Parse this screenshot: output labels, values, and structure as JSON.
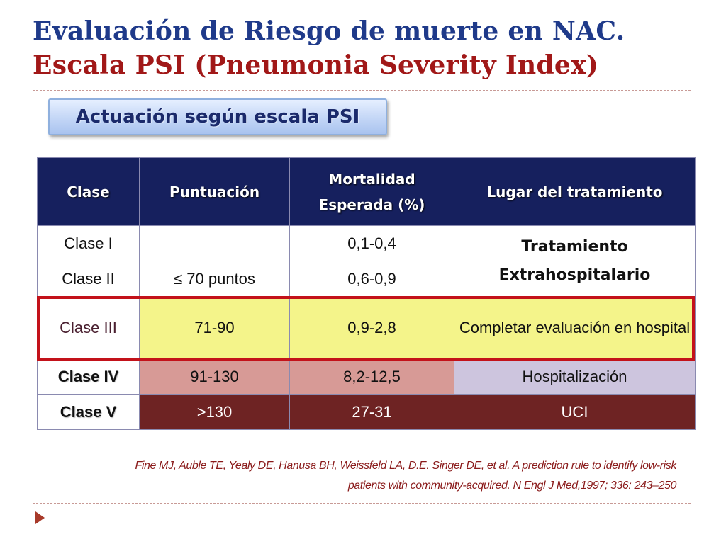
{
  "title": {
    "line1": "Evaluación de Riesgo de muerte en NAC.",
    "line2": "Escala PSI (Pneumonia Severity Index)"
  },
  "subtitle": "Actuación según escala PSI",
  "table": {
    "headers": {
      "clase": "Clase",
      "puntuacion": "Puntuación",
      "mortalidad_line1": "Mortalidad",
      "mortalidad_line2": "Esperada (%)",
      "lugar": "Lugar del tratamiento"
    },
    "rows": [
      {
        "clase": "Clase I",
        "puntuacion": "",
        "mortalidad": "0,1-0,4"
      },
      {
        "clase": "Clase II",
        "puntuacion": "≤ 70 puntos",
        "mortalidad": "0,6-0,9"
      },
      {
        "clase": "Clase III",
        "puntuacion": "71-90",
        "mortalidad": "0,9-2,8",
        "lugar": "Completar evaluación en hospital"
      },
      {
        "clase": "Clase IV",
        "puntuacion": "91-130",
        "mortalidad": "8,2-12,5",
        "lugar": "Hospitalización"
      },
      {
        "clase": "Clase V",
        "puntuacion": ">130",
        "mortalidad": "27-31",
        "lugar": "UCI"
      }
    ],
    "merged_lugar": {
      "line1": "Tratamiento",
      "line2": "Extrahospitalario"
    }
  },
  "reference": {
    "line1": "Fine MJ, Auble TE,  Yealy DE, Hanusa BH, Weissfeld LA, D.E. Singer DE, et al. A prediction rule to identify low-risk",
    "line2": "patients with community-acquired.  N Engl J Med,1997; 336: 243–250"
  },
  "colors": {
    "title_blue": "#1f3a8a",
    "title_red": "#a11818",
    "header_navy": "#16205e",
    "class3_yellow": "#f4f48a",
    "class4_pink": "#d79a96",
    "class4_lavender": "#cdc5de",
    "class5_maroon": "#6e2323",
    "highlight_red": "#c3121a"
  }
}
